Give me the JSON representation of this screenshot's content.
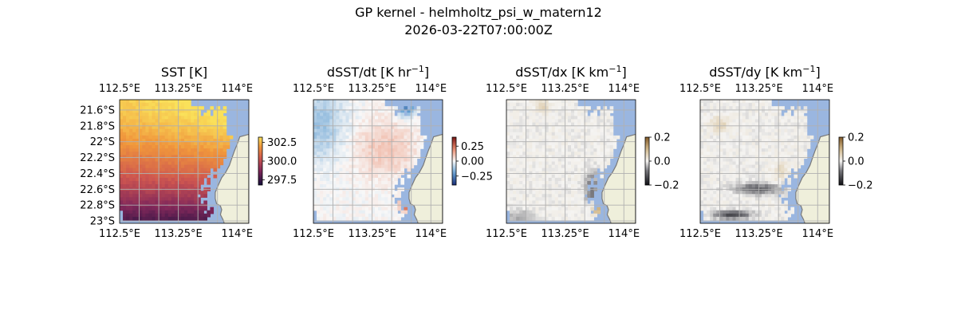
{
  "figure": {
    "title_line1": "GP kernel - helmholtz_psi_w_matern12",
    "title_line2": "2026-03-22T07:00:00Z"
  },
  "chart_data": [
    {
      "type": "heatmap",
      "title": "SST [K]",
      "lon_ticks": [
        "112.5°E",
        "113.25°E",
        "114°E"
      ],
      "lat_ticks": [
        "21.6°S",
        "21.8°S",
        "22°S",
        "22.2°S",
        "22.4°S",
        "22.6°S",
        "22.8°S",
        "23°S"
      ],
      "lat_ticks_shown": true,
      "colorbar": {
        "ticks": [
          297.5,
          300.0,
          302.5
        ],
        "tick_labels": [
          "297.5",
          "300.0",
          "302.5"
        ],
        "range": [
          296.8,
          303.2
        ],
        "colormap": "inferno-like (dark navy-red-orange-yellow)"
      },
      "field": "sst"
    },
    {
      "type": "heatmap",
      "title_main": "dSST/dt [K hr",
      "title_sup": "−1",
      "title_end": "]",
      "lon_ticks": [
        "112.5°E",
        "113.25°E",
        "114°E"
      ],
      "lat_ticks_shown": false,
      "colorbar": {
        "ticks": [
          0.25,
          0.0,
          -0.25
        ],
        "tick_labels": [
          "0.25",
          "0.00",
          "−0.25"
        ],
        "range": [
          -0.4,
          0.4
        ],
        "colormap": "diverging blue-white-red"
      },
      "field": "dsst_dt"
    },
    {
      "type": "heatmap",
      "title_main": "dSST/dx [K km",
      "title_sup": "−1",
      "title_end": "]",
      "lon_ticks": [
        "112.5°E",
        "113.25°E",
        "114°E"
      ],
      "lat_ticks_shown": false,
      "colorbar": {
        "ticks": [
          0.2,
          0.0,
          -0.2
        ],
        "tick_labels": [
          "0.2",
          "0.0",
          "−0.2"
        ],
        "range": [
          -0.2,
          0.2
        ],
        "colormap": "diverging black-white-brown"
      },
      "field": "dsst_dx"
    },
    {
      "type": "heatmap",
      "title_main": "dSST/dy [K km",
      "title_sup": "−1",
      "title_end": "]",
      "lon_ticks": [
        "112.5°E",
        "113.25°E",
        "114°E"
      ],
      "lat_ticks_shown": false,
      "colorbar": {
        "ticks": [
          0.2,
          0.0,
          -0.2
        ],
        "tick_labels": [
          "0.2",
          "0.0",
          "−0.2"
        ],
        "range": [
          -0.2,
          0.2
        ],
        "colormap": "diverging black-white-brown"
      },
      "field": "dsst_dy"
    }
  ],
  "colors": {
    "ocean_nodata": "#9ab6e0",
    "land": "#efefdb",
    "coast": "#7a7a7a",
    "grid": "#b0b0b0"
  }
}
